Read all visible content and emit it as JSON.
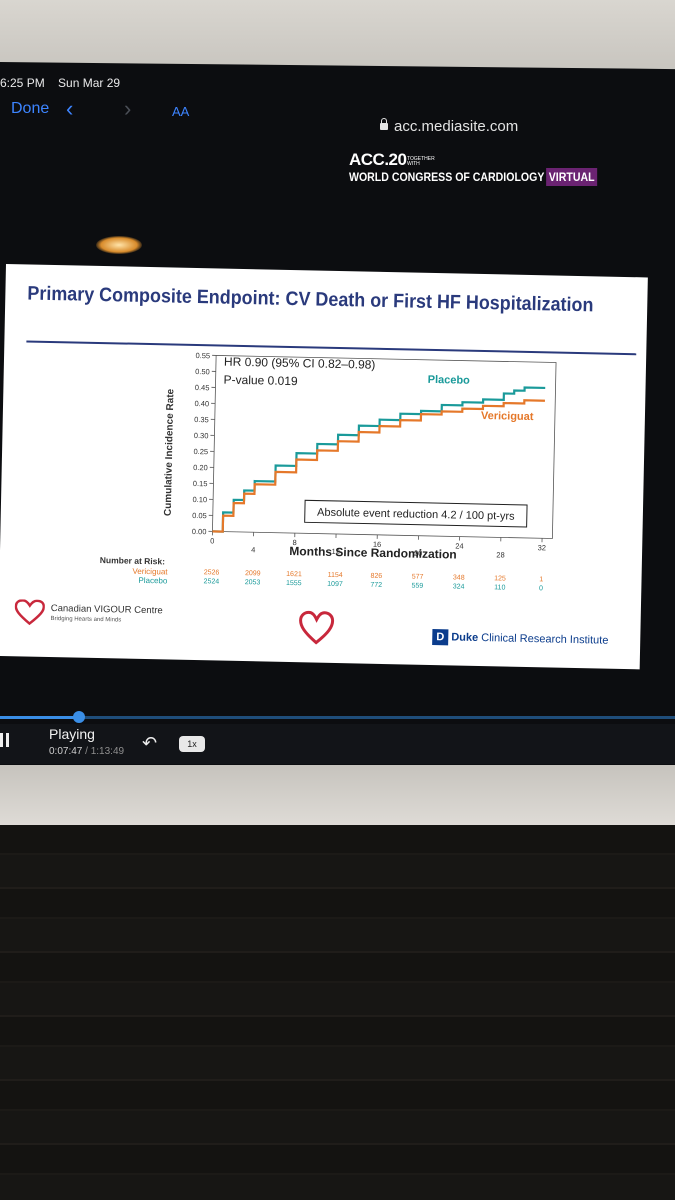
{
  "status_bar": {
    "time": "6:25 PM",
    "date": "Sun Mar 29"
  },
  "browser": {
    "done_label": "Done",
    "text_size_label": "AA",
    "url": "acc.mediasite.com",
    "icons": [
      "chevron-left-icon",
      "chevron-right-icon",
      "lock-icon"
    ]
  },
  "banner": {
    "line1": "ACC.20",
    "together": "TOGETHER WITH",
    "line2": "WORLD CONGRESS OF CARDIOLOGY",
    "virtual": "VIRTUAL",
    "accent_color": "#6b2372"
  },
  "slide": {
    "title": "Primary Composite Endpoint: CV Death or First HF Hospitalization",
    "hr_text": "HR 0.90 (95% CI 0.82–0.98)",
    "p_text": "P-value 0.019",
    "reduction_text": "Absolute event reduction 4.2 / 100 pt-yrs",
    "risk": {
      "header": "Number at Risk:",
      "rows": [
        {
          "label": "Vericiguat",
          "values": [
            "2526",
            "2099",
            "1621",
            "1154",
            "826",
            "577",
            "348",
            "125",
            "1"
          ]
        },
        {
          "label": "Placebo",
          "values": [
            "2524",
            "2053",
            "1555",
            "1097",
            "772",
            "559",
            "324",
            "110",
            "0"
          ]
        }
      ]
    },
    "logos": {
      "cvc_name": "Canadian VIGOUR Centre",
      "cvc_tagline": "Bridging Hearts and Minds",
      "duke_mark": "D",
      "duke_name_bold": "Duke",
      "duke_name_rest": " Clinical Research Institute"
    }
  },
  "chart_data": {
    "type": "line",
    "xlabel": "Months Since Randomization",
    "ylabel": "Cumulative Incidence Rate",
    "xlim": [
      0,
      33
    ],
    "ylim": [
      0,
      0.55
    ],
    "x_ticks": [
      0,
      4,
      8,
      12,
      16,
      20,
      24,
      28,
      32
    ],
    "y_ticks": [
      "0.00",
      "0.05",
      "0.10",
      "0.15",
      "0.20",
      "0.25",
      "0.30",
      "0.35",
      "0.40",
      "0.45",
      "0.50",
      "0.55"
    ],
    "series": [
      {
        "name": "Placebo",
        "color": "#1a9a9a",
        "x": [
          0,
          1,
          2,
          3,
          4,
          6,
          8,
          10,
          12,
          14,
          16,
          18,
          20,
          22,
          24,
          26,
          28,
          29,
          30,
          32
        ],
        "y": [
          0,
          0.06,
          0.1,
          0.13,
          0.16,
          0.21,
          0.25,
          0.28,
          0.31,
          0.34,
          0.36,
          0.38,
          0.39,
          0.41,
          0.42,
          0.43,
          0.45,
          0.46,
          0.47,
          0.47
        ]
      },
      {
        "name": "Vericiguat",
        "color": "#e5782a",
        "x": [
          0,
          1,
          2,
          3,
          4,
          6,
          8,
          10,
          12,
          14,
          16,
          18,
          20,
          22,
          24,
          26,
          28,
          29,
          30,
          32
        ],
        "y": [
          0,
          0.05,
          0.09,
          0.12,
          0.15,
          0.19,
          0.23,
          0.26,
          0.29,
          0.32,
          0.34,
          0.36,
          0.38,
          0.39,
          0.4,
          0.41,
          0.42,
          0.42,
          0.43,
          0.43
        ]
      }
    ]
  },
  "player": {
    "state": "Playing",
    "current_time": "0:07:47",
    "separator": " / ",
    "duration": "1:13:49",
    "speed": "1x",
    "progress_fraction": 0.105,
    "accent_color": "#3a8ee6"
  }
}
